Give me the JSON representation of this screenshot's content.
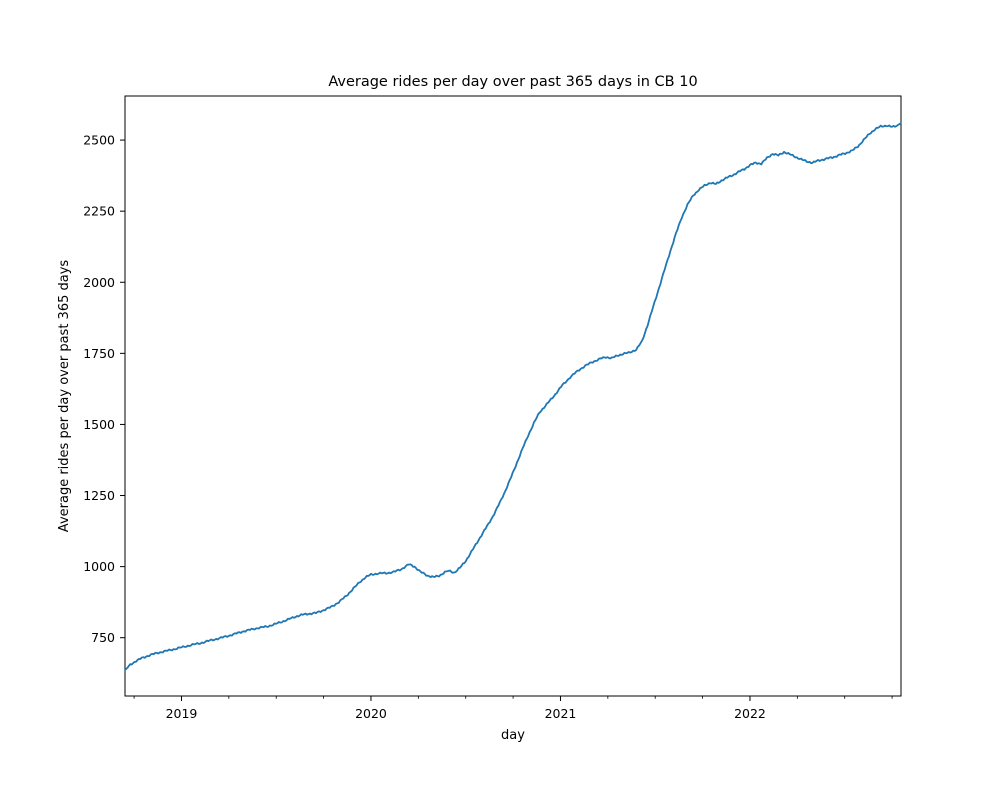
{
  "chart_data": {
    "type": "line",
    "title": "Average rides per day over past 365 days in CB 10",
    "xlabel": "day",
    "ylabel": "Average rides per day over past 365 days",
    "line_color": "#1f77b4",
    "background_color": "#ffffff",
    "grid": false,
    "legend": false,
    "xlim": [
      2018.702,
      2022.797
    ],
    "ylim": [
      545,
      2655
    ],
    "x_major_ticks": [
      {
        "value": 2019,
        "label": "2019"
      },
      {
        "value": 2020,
        "label": "2020"
      },
      {
        "value": 2021,
        "label": "2021"
      },
      {
        "value": 2022,
        "label": "2022"
      }
    ],
    "x_minor_tick_interval_years": 0.25,
    "y_ticks": [
      {
        "value": 750,
        "label": "750"
      },
      {
        "value": 1000,
        "label": "1000"
      },
      {
        "value": 1250,
        "label": "1250"
      },
      {
        "value": 1500,
        "label": "1500"
      },
      {
        "value": 1750,
        "label": "1750"
      },
      {
        "value": 2000,
        "label": "2000"
      },
      {
        "value": 2250,
        "label": "2250"
      },
      {
        "value": 2500,
        "label": "2500"
      }
    ],
    "series": [
      {
        "name": "average rides per day over past 365 days",
        "points": [
          [
            2018.702,
            636
          ],
          [
            2018.73,
            655
          ],
          [
            2018.76,
            668
          ],
          [
            2018.79,
            678
          ],
          [
            2018.83,
            688
          ],
          [
            2018.87,
            696
          ],
          [
            2018.91,
            702
          ],
          [
            2018.95,
            708
          ],
          [
            2019.0,
            716
          ],
          [
            2019.05,
            724
          ],
          [
            2019.1,
            731
          ],
          [
            2019.15,
            740
          ],
          [
            2019.2,
            748
          ],
          [
            2019.25,
            757
          ],
          [
            2019.29,
            765
          ],
          [
            2019.33,
            773
          ],
          [
            2019.37,
            779
          ],
          [
            2019.41,
            785
          ],
          [
            2019.45,
            789
          ],
          [
            2019.49,
            797
          ],
          [
            2019.53,
            806
          ],
          [
            2019.57,
            816
          ],
          [
            2019.61,
            826
          ],
          [
            2019.64,
            831
          ],
          [
            2019.67,
            834
          ],
          [
            2019.71,
            837
          ],
          [
            2019.75,
            847
          ],
          [
            2019.79,
            858
          ],
          [
            2019.83,
            875
          ],
          [
            2019.87,
            897
          ],
          [
            2019.9,
            918
          ],
          [
            2019.94,
            945
          ],
          [
            2019.97,
            962
          ],
          [
            2020.0,
            972
          ],
          [
            2020.04,
            976
          ],
          [
            2020.08,
            977
          ],
          [
            2020.12,
            981
          ],
          [
            2020.16,
            991
          ],
          [
            2020.2,
            1008
          ],
          [
            2020.23,
            1000
          ],
          [
            2020.26,
            982
          ],
          [
            2020.3,
            968
          ],
          [
            2020.33,
            963
          ],
          [
            2020.36,
            968
          ],
          [
            2020.39,
            980
          ],
          [
            2020.41,
            985
          ],
          [
            2020.44,
            979
          ],
          [
            2020.47,
            996
          ],
          [
            2020.5,
            1020
          ],
          [
            2020.53,
            1052
          ],
          [
            2020.56,
            1085
          ],
          [
            2020.59,
            1118
          ],
          [
            2020.62,
            1150
          ],
          [
            2020.65,
            1185
          ],
          [
            2020.68,
            1225
          ],
          [
            2020.71,
            1268
          ],
          [
            2020.74,
            1315
          ],
          [
            2020.77,
            1365
          ],
          [
            2020.8,
            1415
          ],
          [
            2020.83,
            1462
          ],
          [
            2020.86,
            1505
          ],
          [
            2020.89,
            1543
          ],
          [
            2020.92,
            1565
          ],
          [
            2020.95,
            1588
          ],
          [
            2020.98,
            1612
          ],
          [
            2021.01,
            1638
          ],
          [
            2021.05,
            1665
          ],
          [
            2021.09,
            1688
          ],
          [
            2021.13,
            1706
          ],
          [
            2021.17,
            1720
          ],
          [
            2021.21,
            1731
          ],
          [
            2021.24,
            1737
          ],
          [
            2021.27,
            1733
          ],
          [
            2021.3,
            1742
          ],
          [
            2021.33,
            1748
          ],
          [
            2021.36,
            1752
          ],
          [
            2021.4,
            1763
          ],
          [
            2021.43,
            1792
          ],
          [
            2021.46,
            1850
          ],
          [
            2021.49,
            1915
          ],
          [
            2021.52,
            1980
          ],
          [
            2021.55,
            2045
          ],
          [
            2021.58,
            2110
          ],
          [
            2021.61,
            2172
          ],
          [
            2021.64,
            2228
          ],
          [
            2021.67,
            2272
          ],
          [
            2021.7,
            2305
          ],
          [
            2021.73,
            2325
          ],
          [
            2021.76,
            2340
          ],
          [
            2021.79,
            2350
          ],
          [
            2021.82,
            2345
          ],
          [
            2021.85,
            2358
          ],
          [
            2021.88,
            2368
          ],
          [
            2021.91,
            2377
          ],
          [
            2021.94,
            2388
          ],
          [
            2021.97,
            2398
          ],
          [
            2022.0,
            2412
          ],
          [
            2022.03,
            2420
          ],
          [
            2022.06,
            2417
          ],
          [
            2022.09,
            2437
          ],
          [
            2022.12,
            2452
          ],
          [
            2022.15,
            2446
          ],
          [
            2022.18,
            2458
          ],
          [
            2022.21,
            2450
          ],
          [
            2022.24,
            2441
          ],
          [
            2022.27,
            2432
          ],
          [
            2022.3,
            2425
          ],
          [
            2022.33,
            2420
          ],
          [
            2022.36,
            2428
          ],
          [
            2022.39,
            2432
          ],
          [
            2022.42,
            2437
          ],
          [
            2022.45,
            2442
          ],
          [
            2022.48,
            2449
          ],
          [
            2022.51,
            2455
          ],
          [
            2022.54,
            2463
          ],
          [
            2022.57,
            2478
          ],
          [
            2022.6,
            2500
          ],
          [
            2022.63,
            2522
          ],
          [
            2022.66,
            2538
          ],
          [
            2022.69,
            2548
          ],
          [
            2022.72,
            2551
          ],
          [
            2022.75,
            2546
          ],
          [
            2022.78,
            2552
          ],
          [
            2022.797,
            2560
          ]
        ]
      }
    ]
  }
}
